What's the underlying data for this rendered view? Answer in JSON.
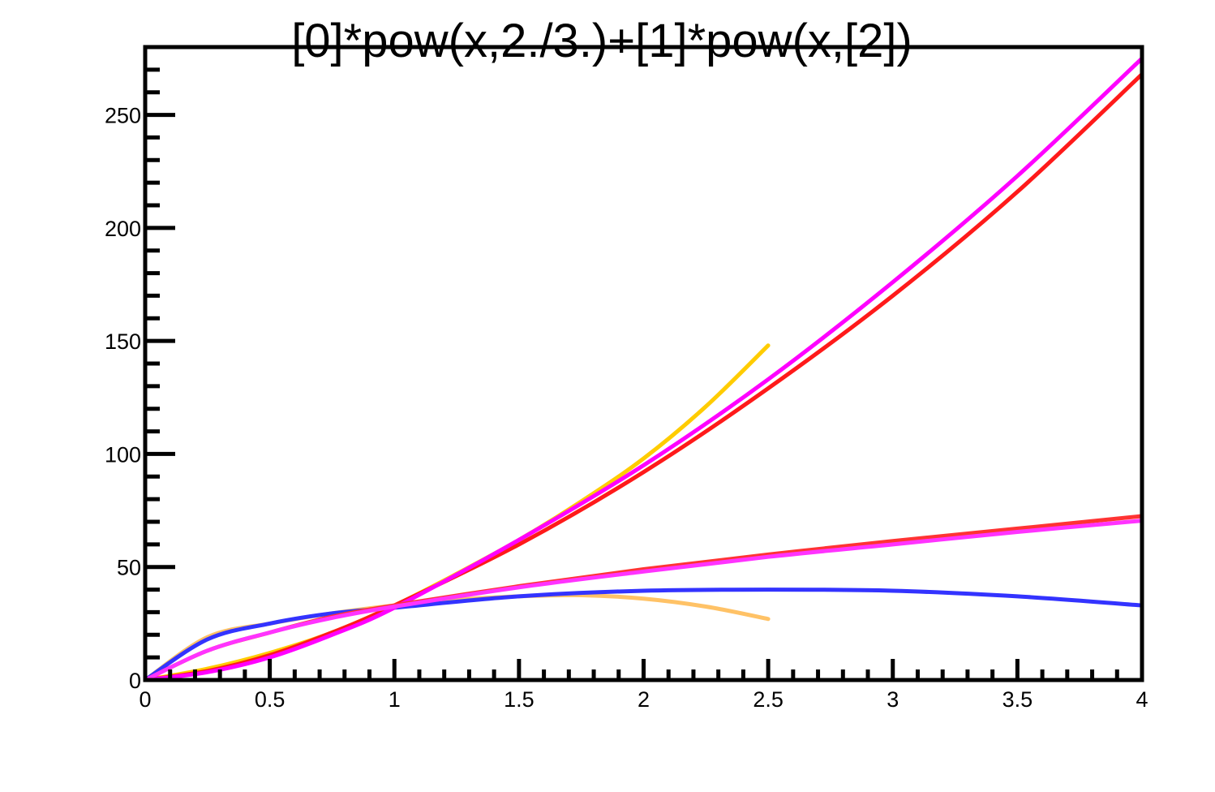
{
  "chart_data": {
    "type": "line",
    "title": "[0]*pow(x,2./3.)+[1]*pow(x,[2])",
    "xlabel": "",
    "ylabel": "",
    "xlim": [
      0,
      4
    ],
    "ylim": [
      0,
      280
    ],
    "grid": false,
    "legend": "none",
    "x_ticks": [
      {
        "value": 0,
        "label": "0"
      },
      {
        "value": 0.5,
        "label": "0.5"
      },
      {
        "value": 1,
        "label": "1"
      },
      {
        "value": 1.5,
        "label": "1.5"
      },
      {
        "value": 2,
        "label": "2"
      },
      {
        "value": 2.5,
        "label": "2.5"
      },
      {
        "value": 3,
        "label": "3"
      },
      {
        "value": 3.5,
        "label": "3.5"
      },
      {
        "value": 4,
        "label": "4"
      }
    ],
    "y_ticks": [
      {
        "value": 0,
        "label": "0"
      },
      {
        "value": 50,
        "label": "50"
      },
      {
        "value": 100,
        "label": "100"
      },
      {
        "value": 150,
        "label": "150"
      },
      {
        "value": 200,
        "label": "200"
      },
      {
        "value": 250,
        "label": "250"
      }
    ],
    "series": [
      {
        "color": "#ffc266",
        "x": [
          0,
          0.25,
          0.5,
          0.75,
          1,
          1.25,
          1.5,
          1.75,
          2,
          2.25,
          2.5
        ],
        "y": [
          0,
          19,
          25,
          29.5,
          33,
          35.5,
          37,
          37.5,
          36,
          32.5,
          27
        ]
      },
      {
        "color": "#ffcc00",
        "x": [
          0,
          0.25,
          0.5,
          0.75,
          1,
          1.25,
          1.5,
          1.75,
          2,
          2.25,
          2.5
        ],
        "y": [
          0,
          5,
          12,
          21,
          33,
          47,
          62,
          79,
          98,
          121,
          148
        ]
      },
      {
        "color": "#3333ff",
        "x": [
          0,
          0.25,
          0.5,
          0.75,
          1,
          1.5,
          2,
          2.5,
          3,
          3.5,
          4
        ],
        "y": [
          0,
          18,
          25,
          29.5,
          32,
          37,
          39.5,
          40,
          39.5,
          37,
          33
        ]
      },
      {
        "color": "#ff1a1a",
        "x": [
          0,
          0.25,
          0.5,
          0.75,
          1,
          1.5,
          2,
          2.5,
          3,
          3.5,
          4
        ],
        "y": [
          0,
          4,
          11,
          21,
          33,
          60,
          92,
          129,
          170,
          216,
          268
        ]
      },
      {
        "color": "#ff00ff",
        "x": [
          0,
          0.25,
          0.5,
          0.75,
          1,
          1.5,
          2,
          2.5,
          3,
          3.5,
          4
        ],
        "y": [
          0,
          3.5,
          10,
          20,
          32,
          62,
          95,
          133,
          176,
          223,
          275
        ]
      },
      {
        "color": "#ff3333",
        "x": [
          0,
          0.25,
          0.5,
          0.75,
          1,
          1.5,
          2,
          2.5,
          3,
          3.5,
          4
        ],
        "y": [
          0,
          13,
          21,
          28,
          33,
          41.5,
          49,
          55.5,
          61.5,
          67,
          72.5
        ]
      },
      {
        "color": "#ff33ff",
        "x": [
          0,
          0.25,
          0.5,
          0.75,
          1,
          1.5,
          2,
          2.5,
          3,
          3.5,
          4
        ],
        "y": [
          0,
          13,
          21,
          27.5,
          32.5,
          41,
          48,
          54.5,
          60,
          65.5,
          70.5
        ]
      }
    ]
  }
}
